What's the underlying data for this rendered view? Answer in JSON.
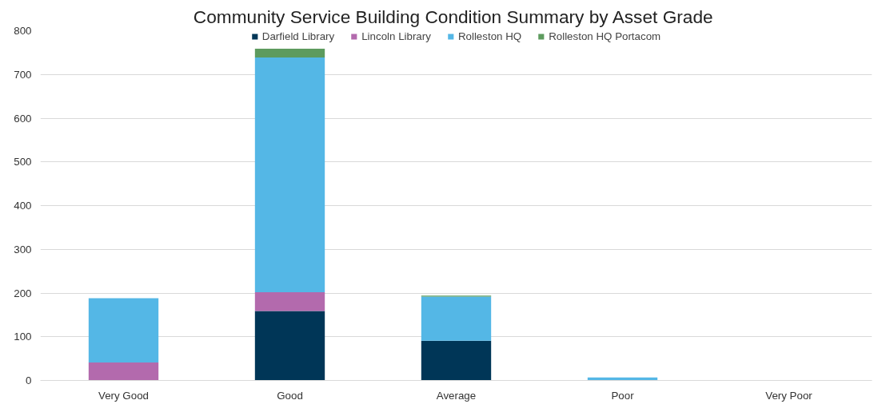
{
  "chart_data": {
    "type": "bar",
    "title": "Community Service Building Condition Summary  by Asset Grade",
    "stacked": true,
    "legend": "top",
    "categories": [
      "Very Good",
      "Good",
      "Average",
      "Poor",
      "Very Poor"
    ],
    "series": [
      {
        "name": "Darfield Library",
        "color": "#003657",
        "values": [
          null,
          159,
          91,
          null,
          0
        ]
      },
      {
        "name": "Lincoln Library",
        "color": "#b36aad",
        "values": [
          41,
          43,
          0,
          0,
          0
        ]
      },
      {
        "name": "Rolleston HQ",
        "color": "#54b7e6",
        "values": [
          147,
          537,
          101,
          7,
          0
        ]
      },
      {
        "name": "Rolleston HQ Portacom",
        "color": "#5d9b5e",
        "values": [
          0,
          20,
          2,
          0,
          0
        ]
      }
    ],
    "ylim": [
      0,
      800
    ],
    "yticks": [
      0,
      100,
      200,
      300,
      400,
      500,
      600,
      700,
      800
    ],
    "grid": "y"
  }
}
